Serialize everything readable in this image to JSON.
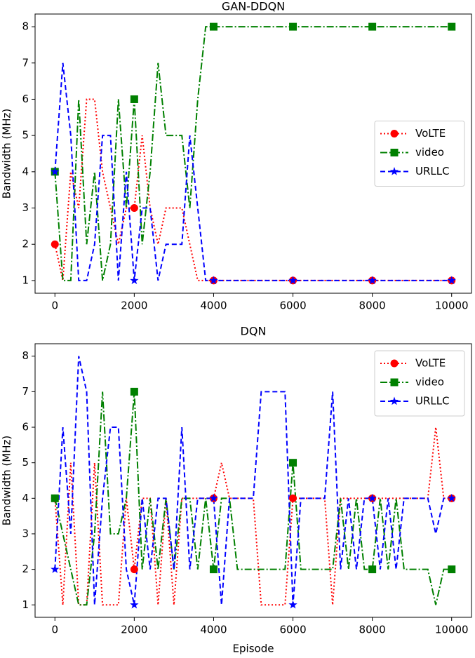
{
  "chart_data": [
    {
      "type": "line",
      "title": "GAN-DDQN",
      "ylabel": "Bandwidth (MHz)",
      "legend": "center right",
      "marker_every": 2000,
      "x": [
        0,
        200,
        400,
        600,
        800,
        1000,
        1200,
        1400,
        1600,
        1800,
        2000,
        2200,
        2400,
        2600,
        2800,
        3000,
        3200,
        3400,
        3600,
        3800,
        4000,
        6000,
        8000,
        10000
      ],
      "series": [
        {
          "name": "VoLTE",
          "color": "#ff0000",
          "linestyle": "dotted",
          "marker": "circle",
          "values": [
            2,
            1,
            4,
            3,
            6,
            6,
            4,
            3,
            2,
            3,
            3,
            5,
            3,
            2,
            3,
            3,
            3,
            2,
            1,
            1,
            1,
            1,
            1,
            1
          ]
        },
        {
          "name": "video",
          "color": "#008000",
          "linestyle": "dashdot",
          "marker": "square",
          "values": [
            4,
            1,
            1,
            6,
            2,
            4,
            1,
            2,
            6,
            3,
            6,
            2,
            4,
            7,
            5,
            5,
            5,
            3,
            6,
            8,
            8,
            8,
            8,
            8
          ]
        },
        {
          "name": "URLLC",
          "color": "#0000ff",
          "linestyle": "dashed",
          "marker": "star",
          "values": [
            4,
            7,
            5,
            1,
            1,
            2,
            5,
            5,
            1,
            4,
            1,
            3,
            3,
            1,
            2,
            2,
            2,
            5,
            3,
            1,
            1,
            1,
            1,
            1
          ]
        }
      ],
      "xlim": [
        -500,
        10500
      ],
      "xticks": [
        0,
        2000,
        4000,
        6000,
        8000,
        10000
      ],
      "ylim": [
        0.65,
        8.35
      ],
      "yticks": [
        1,
        2,
        3,
        4,
        5,
        6,
        7,
        8
      ]
    },
    {
      "type": "line",
      "title": "DQN",
      "xlabel": "Episode",
      "ylabel": "Bandwidth (MHz)",
      "legend": "upper right",
      "marker_every": 2000,
      "x": [
        0,
        200,
        400,
        600,
        800,
        1000,
        1200,
        1400,
        1600,
        1800,
        2000,
        2200,
        2400,
        2600,
        2800,
        3000,
        3200,
        3400,
        3600,
        3800,
        4000,
        4200,
        4400,
        4600,
        4800,
        5000,
        5200,
        5400,
        5600,
        5800,
        6000,
        6200,
        6400,
        6600,
        6800,
        7000,
        7200,
        7400,
        7600,
        7800,
        8000,
        8200,
        8400,
        8600,
        8800,
        9000,
        9200,
        9400,
        9600,
        9800,
        10000
      ],
      "series": [
        {
          "name": "VoLTE",
          "color": "#ff0000",
          "linestyle": "dotted",
          "marker": "circle",
          "values": [
            4,
            1,
            5,
            1,
            1,
            5,
            1,
            1,
            1,
            4,
            2,
            4,
            4,
            1,
            4,
            1,
            4,
            4,
            4,
            4,
            4,
            5,
            4,
            4,
            4,
            4,
            1,
            1,
            1,
            1,
            4,
            4,
            4,
            4,
            4,
            1,
            4,
            4,
            4,
            4,
            4,
            4,
            4,
            4,
            4,
            4,
            4,
            4,
            6,
            4,
            4
          ]
        },
        {
          "name": "video",
          "color": "#008000",
          "linestyle": "dashdot",
          "marker": "square",
          "values": [
            4,
            3,
            2,
            1,
            1,
            3,
            7,
            3,
            3,
            4,
            7,
            2,
            4,
            2,
            4,
            2,
            4,
            4,
            2,
            4,
            2,
            4,
            4,
            2,
            2,
            2,
            2,
            2,
            2,
            2,
            5,
            2,
            2,
            2,
            2,
            2,
            4,
            2,
            4,
            2,
            2,
            4,
            2,
            4,
            2,
            2,
            2,
            2,
            1,
            2,
            2
          ]
        },
        {
          "name": "URLLC",
          "color": "#0000ff",
          "linestyle": "dashed",
          "marker": "star",
          "values": [
            2,
            6,
            3,
            8,
            7,
            1,
            4,
            6,
            6,
            2,
            1,
            4,
            2,
            4,
            4,
            2,
            6,
            2,
            4,
            4,
            4,
            1,
            4,
            4,
            4,
            4,
            7,
            7,
            7,
            7,
            1,
            4,
            4,
            4,
            4,
            7,
            2,
            4,
            2,
            4,
            4,
            2,
            4,
            2,
            4,
            4,
            4,
            4,
            3,
            4,
            4
          ]
        }
      ],
      "xlim": [
        -500,
        10500
      ],
      "xticks": [
        0,
        2000,
        4000,
        6000,
        8000,
        10000
      ],
      "ylim": [
        0.65,
        8.35
      ],
      "yticks": [
        1,
        2,
        3,
        4,
        5,
        6,
        7,
        8
      ]
    }
  ]
}
